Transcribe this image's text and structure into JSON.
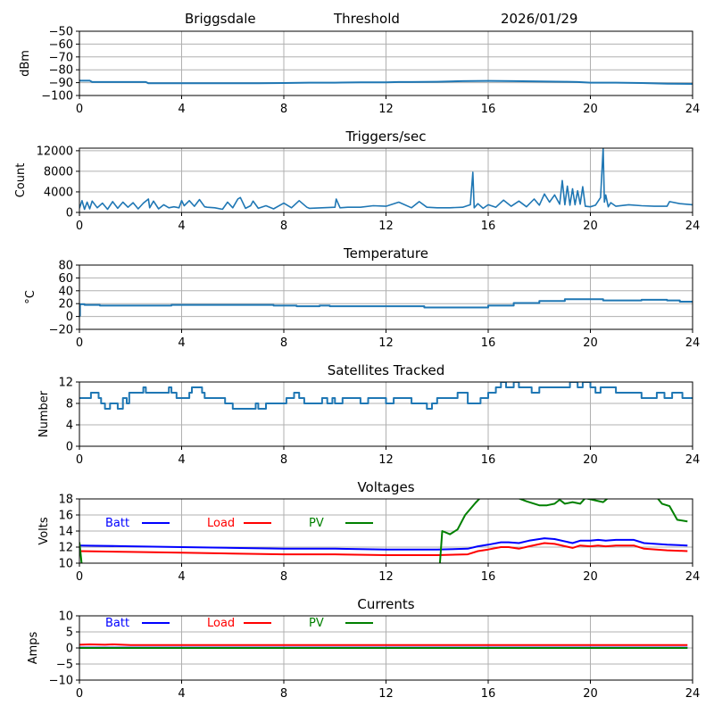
{
  "header": {
    "site": "Briggsdale",
    "mode": "Threshold",
    "date": "2026/01/29"
  },
  "chart_data": [
    {
      "id": "signal",
      "type": "line",
      "title": "",
      "xlabel": "",
      "ylabel": "dBm",
      "xlim": [
        0,
        24
      ],
      "ylim": [
        -100,
        -50
      ],
      "xticks": [
        0,
        4,
        8,
        12,
        16,
        20,
        24
      ],
      "yticks": [
        -100,
        -90,
        -80,
        -70,
        -60,
        -50
      ],
      "ytick_labels": [
        "−100",
        "−90",
        "−80",
        "−70",
        "−60",
        "−50"
      ],
      "grid": true,
      "series": [
        {
          "name": "dBm",
          "color": "#1f77b4",
          "x": [
            0,
            0.4,
            0.5,
            1,
            2,
            2.6,
            2.7,
            3,
            4,
            5,
            6,
            7,
            8,
            9,
            10,
            11,
            12,
            12.5,
            13,
            14,
            15,
            16,
            17,
            18,
            19,
            19.5,
            20,
            21,
            22,
            23,
            24
          ],
          "y": [
            -88.5,
            -88.5,
            -89.5,
            -89.5,
            -89.5,
            -89.5,
            -90.5,
            -90.5,
            -90.5,
            -90.5,
            -90.5,
            -90.5,
            -90.3,
            -90,
            -90,
            -89.8,
            -89.7,
            -89.5,
            -89.5,
            -89.3,
            -88.8,
            -88.6,
            -88.8,
            -89,
            -89.3,
            -89.5,
            -90,
            -90,
            -90.3,
            -90.8,
            -91
          ]
        }
      ]
    },
    {
      "id": "triggers",
      "type": "line",
      "title": "Triggers/sec",
      "xlabel": "",
      "ylabel": "Count",
      "xlim": [
        0,
        24
      ],
      "ylim": [
        0,
        12500
      ],
      "xticks": [
        0,
        4,
        8,
        12,
        16,
        20,
        24
      ],
      "yticks": [
        0,
        4000,
        8000,
        12000
      ],
      "ytick_labels": [
        "0",
        "4000",
        "8000",
        "12000"
      ],
      "grid": true,
      "series": [
        {
          "name": "Count",
          "color": "#1f77b4",
          "x": [
            0,
            0.1,
            0.2,
            0.3,
            0.4,
            0.5,
            0.7,
            0.9,
            1.1,
            1.3,
            1.5,
            1.7,
            1.9,
            2.1,
            2.3,
            2.5,
            2.7,
            2.75,
            2.9,
            3.1,
            3.3,
            3.5,
            3.7,
            3.9,
            4.0,
            4.1,
            4.3,
            4.5,
            4.7,
            4.9,
            5.0,
            5.3,
            5.6,
            5.8,
            6.0,
            6.2,
            6.3,
            6.5,
            6.7,
            6.8,
            7.0,
            7.3,
            7.6,
            8.0,
            8.3,
            8.6,
            8.9,
            9.0,
            9.5,
            10.0,
            10.05,
            10.2,
            10.5,
            11.0,
            11.5,
            12.0,
            12.5,
            13.0,
            13.3,
            13.6,
            14.0,
            14.5,
            15.0,
            15.3,
            15.4,
            15.45,
            15.6,
            15.8,
            16.0,
            16.3,
            16.6,
            16.9,
            17.2,
            17.5,
            17.8,
            18.0,
            18.2,
            18.4,
            18.6,
            18.8,
            18.9,
            19.0,
            19.1,
            19.2,
            19.3,
            19.4,
            19.5,
            19.6,
            19.7,
            19.8,
            20.0,
            20.2,
            20.4,
            20.5,
            20.55,
            20.6,
            20.7,
            20.8,
            21.0,
            21.5,
            22.0,
            22.5,
            23.0,
            23.1,
            23.5,
            24.0
          ],
          "y": [
            800,
            2300,
            600,
            2000,
            700,
            2200,
            900,
            1800,
            600,
            2100,
            800,
            2000,
            1000,
            1900,
            700,
            1800,
            2600,
            900,
            2200,
            700,
            1500,
            900,
            1100,
            900,
            2300,
            1300,
            2300,
            1200,
            2500,
            1100,
            1000,
            900,
            600,
            2000,
            900,
            2600,
            2900,
            800,
            1300,
            2200,
            800,
            1300,
            700,
            1800,
            900,
            2300,
            1000,
            800,
            900,
            1000,
            2600,
            900,
            1000,
            1000,
            1300,
            1200,
            2000,
            900,
            2100,
            1000,
            900,
            900,
            1000,
            1500,
            7800,
            900,
            1700,
            800,
            1500,
            1000,
            2400,
            1200,
            2200,
            1100,
            2600,
            1400,
            3600,
            2000,
            3400,
            1600,
            6200,
            1500,
            5100,
            1400,
            4600,
            1500,
            4200,
            1600,
            5000,
            1200,
            1100,
            1400,
            2900,
            12500,
            2000,
            3400,
            1100,
            1900,
            1200,
            1500,
            1300,
            1200,
            1200,
            2100,
            1700,
            1500
          ]
        }
      ]
    },
    {
      "id": "temperature",
      "type": "line",
      "title": "Temperature",
      "xlabel": "",
      "ylabel": "°C",
      "xlim": [
        0,
        24
      ],
      "ylim": [
        -20,
        80
      ],
      "xticks": [
        0,
        4,
        8,
        12,
        16,
        20,
        24
      ],
      "yticks": [
        -20,
        0,
        20,
        40,
        60,
        80
      ],
      "ytick_labels": [
        "−20",
        "0",
        "20",
        "40",
        "60",
        "80"
      ],
      "grid": true,
      "series": [
        {
          "name": "Temperature",
          "color": "#1f77b4",
          "x": [
            0,
            0.02,
            0.2,
            0.8,
            3.6,
            7.6,
            8.5,
            9.4,
            9.8,
            11.0,
            12.0,
            13.0,
            13.5,
            15.0,
            16.0,
            17.0,
            18.0,
            19.0,
            20.0,
            20.5,
            21.5,
            22.0,
            23.0,
            23.5,
            24.0
          ],
          "y": [
            1,
            19,
            18,
            17,
            18,
            17,
            16,
            17,
            16,
            16,
            16,
            16,
            14,
            14,
            17,
            21,
            24,
            27,
            27,
            25,
            25,
            26,
            25,
            23,
            23
          ]
        }
      ]
    },
    {
      "id": "satellites",
      "type": "line",
      "title": "Satellites Tracked",
      "xlabel": "",
      "ylabel": "Number",
      "xlim": [
        0,
        24
      ],
      "ylim": [
        0,
        12
      ],
      "xticks": [
        0,
        4,
        8,
        12,
        16,
        20,
        24
      ],
      "yticks": [
        0,
        4,
        8,
        12
      ],
      "ytick_labels": [
        "0",
        "4",
        "8",
        "12"
      ],
      "grid": true,
      "series": [
        {
          "name": "Satellites",
          "color": "#1f77b4",
          "x": [
            0,
            0.45,
            0.75,
            0.85,
            1.0,
            1.2,
            1.5,
            1.7,
            1.85,
            1.95,
            2.1,
            2.5,
            2.6,
            3.2,
            3.5,
            3.6,
            3.8,
            4.0,
            4.3,
            4.4,
            4.5,
            4.8,
            4.9,
            5.6,
            5.7,
            5.9,
            6.0,
            6.1,
            6.9,
            7.0,
            7.3,
            7.8,
            8.0,
            8.1,
            8.4,
            8.6,
            8.8,
            9.3,
            9.5,
            9.7,
            9.9,
            10.0,
            10.3,
            10.8,
            11.0,
            11.3,
            11.8,
            12.0,
            12.3,
            12.8,
            13.0,
            13.3,
            13.6,
            13.8,
            14.0,
            14.5,
            14.8,
            15.2,
            15.5,
            15.7,
            16.0,
            16.3,
            16.5,
            16.7,
            17.0,
            17.2,
            17.5,
            17.7,
            18.0,
            18.5,
            19.0,
            19.2,
            19.5,
            19.7,
            20.0,
            20.2,
            20.4,
            20.8,
            21.0,
            21.3,
            22.0,
            22.3,
            22.6,
            22.9,
            23.2,
            23.6,
            24.0
          ],
          "y": [
            9,
            10,
            9,
            8,
            7,
            8,
            7,
            9,
            8,
            10,
            10,
            11,
            10,
            10,
            11,
            10,
            9,
            9,
            10,
            11,
            11,
            10,
            9,
            9,
            8,
            8,
            7,
            7,
            8,
            7,
            8,
            8,
            8,
            9,
            10,
            9,
            8,
            8,
            9,
            8,
            9,
            8,
            9,
            9,
            8,
            9,
            9,
            8,
            9,
            9,
            8,
            8,
            7,
            8,
            9,
            9,
            10,
            8,
            8,
            9,
            10,
            11,
            12,
            11,
            12,
            11,
            11,
            10,
            11,
            11,
            11,
            12,
            11,
            12,
            11,
            10,
            11,
            11,
            10,
            10,
            9,
            9,
            10,
            9,
            10,
            9,
            9
          ]
        }
      ]
    },
    {
      "id": "voltages",
      "type": "line",
      "title": "Voltages",
      "xlabel": "",
      "ylabel": "Volts",
      "xlim": [
        0,
        24
      ],
      "ylim": [
        10,
        18
      ],
      "xticks": [
        0,
        4,
        8,
        12,
        16,
        20,
        24
      ],
      "yticks": [
        10,
        12,
        14,
        16,
        18
      ],
      "ytick_labels": [
        "10",
        "12",
        "14",
        "16",
        "18"
      ],
      "grid": true,
      "legend": "inline-top",
      "series": [
        {
          "name": "Batt",
          "color": "#0000ff",
          "x": [
            0,
            2,
            4,
            6,
            8,
            10,
            12,
            14,
            15.2,
            15.6,
            16,
            16.5,
            16.8,
            17.2,
            17.6,
            18.2,
            18.6,
            19.3,
            19.6,
            20.0,
            20.3,
            20.6,
            21.0,
            21.7,
            22.1,
            23.0,
            23.8
          ],
          "y": [
            12.2,
            12.1,
            12.0,
            11.9,
            11.8,
            11.8,
            11.7,
            11.7,
            11.8,
            12.1,
            12.3,
            12.6,
            12.6,
            12.5,
            12.8,
            13.1,
            13.0,
            12.5,
            12.8,
            12.8,
            12.9,
            12.8,
            12.9,
            12.9,
            12.5,
            12.3,
            12.2
          ]
        },
        {
          "name": "Load",
          "color": "#ff0000",
          "x": [
            0,
            2,
            4,
            6,
            8,
            10,
            12,
            14,
            15.2,
            15.6,
            16,
            16.5,
            16.8,
            17.2,
            17.6,
            18.2,
            18.6,
            19.3,
            19.6,
            20.0,
            20.3,
            20.6,
            21.0,
            21.7,
            22.1,
            23.0,
            23.8
          ],
          "y": [
            11.5,
            11.4,
            11.3,
            11.2,
            11.1,
            11.1,
            11.0,
            11.0,
            11.1,
            11.5,
            11.7,
            12.0,
            12.0,
            11.8,
            12.1,
            12.5,
            12.4,
            11.9,
            12.2,
            12.1,
            12.2,
            12.1,
            12.2,
            12.2,
            11.8,
            11.6,
            11.5
          ]
        },
        {
          "name": "PV",
          "color": "#008000",
          "x": [
            0,
            0.1,
            14.1,
            14.2,
            14.5,
            14.8,
            15.1,
            15.5,
            15.8,
            16.5,
            17.0,
            17.5,
            18.0,
            18.3,
            18.6,
            18.8,
            19.0,
            19.3,
            19.6,
            19.8,
            20.5,
            20.8,
            21.5,
            22.0,
            22.6,
            22.8,
            23.1,
            23.4,
            23.8
          ],
          "y": [
            12.6,
            9.5,
            9.5,
            14.0,
            13.6,
            14.2,
            16.0,
            17.5,
            18.5,
            18.8,
            18.3,
            17.7,
            17.2,
            17.2,
            17.4,
            17.9,
            17.4,
            17.6,
            17.4,
            18.1,
            17.6,
            18.4,
            18.6,
            18.3,
            18.2,
            17.4,
            17.1,
            15.4,
            15.2
          ]
        }
      ]
    },
    {
      "id": "currents",
      "type": "line",
      "title": "Currents",
      "xlabel": "",
      "ylabel": "Amps",
      "xlim": [
        0,
        24
      ],
      "ylim": [
        -10,
        10
      ],
      "xticks": [
        0,
        4,
        8,
        12,
        16,
        20,
        24
      ],
      "yticks": [
        -10,
        -5,
        0,
        5,
        10
      ],
      "ytick_labels": [
        "−10",
        "−5",
        "0",
        "5",
        "10"
      ],
      "grid": true,
      "legend": "inline-top",
      "series": [
        {
          "name": "Batt",
          "color": "#0000ff",
          "x": [
            0,
            23.8
          ],
          "y": [
            0.1,
            0.1
          ]
        },
        {
          "name": "Load",
          "color": "#ff0000",
          "x": [
            0,
            0.4,
            1.0,
            1.3,
            2,
            6,
            10,
            14,
            18,
            22,
            23.8
          ],
          "y": [
            1.0,
            1.1,
            1.0,
            1.1,
            0.9,
            0.9,
            0.9,
            0.9,
            0.9,
            0.9,
            0.9
          ]
        },
        {
          "name": "PV",
          "color": "#008000",
          "x": [
            0,
            23.8
          ],
          "y": [
            0.0,
            0.0
          ]
        }
      ]
    }
  ]
}
